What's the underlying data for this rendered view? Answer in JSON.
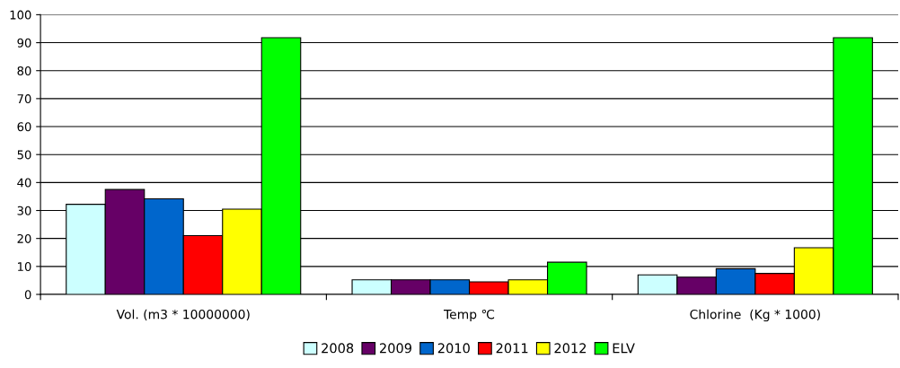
{
  "chart_data": {
    "type": "bar",
    "categories": [
      "Vol. (m3 * 10000000)",
      "Temp ℃",
      "Chlorine  (Kg * 1000)"
    ],
    "series": [
      {
        "name": "2008",
        "color": "#ccffff",
        "values": [
          32.2,
          5.2,
          7
        ]
      },
      {
        "name": "2009",
        "color": "#660066",
        "values": [
          37.5,
          5.2,
          6.2
        ]
      },
      {
        "name": "2010",
        "color": "#0066cc",
        "values": [
          34.2,
          5.2,
          9.2
        ]
      },
      {
        "name": "2011",
        "color": "#ff0000",
        "values": [
          21,
          4.5,
          7.5
        ]
      },
      {
        "name": "2012",
        "color": "#ffff00",
        "values": [
          30.5,
          5.2,
          16.7
        ]
      },
      {
        "name": "ELV",
        "color": "#00ff00",
        "values": [
          91.8,
          11.5,
          91.8
        ]
      }
    ],
    "ylim": [
      0,
      100
    ],
    "yticks": [
      0,
      10,
      20,
      30,
      40,
      50,
      60,
      70,
      80,
      90,
      100
    ],
    "grid": "y",
    "legend": "bottom"
  }
}
